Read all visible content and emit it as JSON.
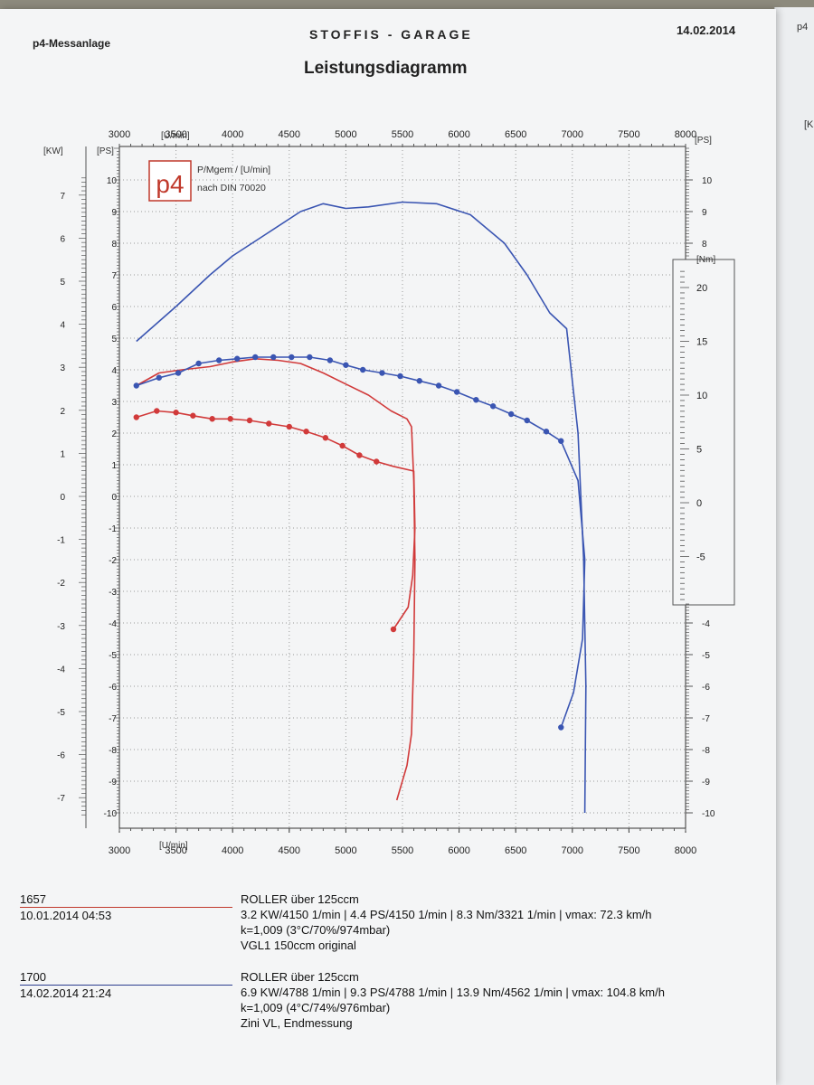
{
  "header": {
    "left": "p4-Messanlage",
    "center": "STOFFIS - GARAGE",
    "date": "14.02.2014",
    "title": "Leistungsdiagramm"
  },
  "logo": {
    "mark": "p4"
  },
  "legend": {
    "line1": "P/Mgem / [U/min]",
    "line2": "nach DIN 70020"
  },
  "units": {
    "rpm": "[U/min]",
    "kw": "[KW]",
    "ps": "[PS]",
    "nm": "[Nm]"
  },
  "chart_data": {
    "type": "line",
    "title": "Leistungsdiagramm",
    "xlabel": "[U/min]",
    "x_ticks": [
      3000,
      3500,
      4000,
      4500,
      5000,
      5500,
      6000,
      6500,
      7000,
      7500,
      8000
    ],
    "xlim": [
      3000,
      8000
    ],
    "ylabel_left_outer": "[KW]",
    "kw_ticks": [
      -7,
      -6,
      -5,
      -4,
      -3,
      -2,
      -1,
      0,
      1,
      2,
      3,
      4,
      5,
      6,
      7
    ],
    "ylabel_left": "[PS]",
    "ps_ticks": [
      -10,
      -9,
      -8,
      -7,
      -6,
      -5,
      -4,
      -3,
      -2,
      -1,
      0,
      1,
      2,
      3,
      4,
      5,
      6,
      7,
      8,
      9,
      10
    ],
    "ylim": [
      -10,
      11
    ],
    "ylabel_right_nm": "[Nm]",
    "nm_ticks": [
      -5,
      0,
      5,
      10,
      15,
      20
    ],
    "ylabel_right_ps": "[PS]",
    "ps_right_ticks": [
      -10,
      -9,
      -8,
      -7,
      -6,
      -5,
      -4,
      8,
      9,
      10
    ],
    "grid": true,
    "series": [
      {
        "name": "1657 power",
        "color": "#d13a3a",
        "marker": "none",
        "x": [
          3150,
          3350,
          3550,
          3800,
          4000,
          4200,
          4400,
          4600,
          4800,
          5000,
          5200,
          5400,
          5540,
          5580,
          5600,
          5610,
          5600,
          5580,
          5540,
          5450
        ],
        "y": [
          3.5,
          3.9,
          4.0,
          4.1,
          4.25,
          4.35,
          4.3,
          4.2,
          3.9,
          3.55,
          3.2,
          2.7,
          2.45,
          2.2,
          0.5,
          -2,
          -5,
          -7.5,
          -8.5,
          -9.6
        ]
      },
      {
        "name": "1657 torque",
        "color": "#d13a3a",
        "marker": "dot",
        "x": [
          3150,
          3330,
          3500,
          3650,
          3820,
          3980,
          4150,
          4320,
          4500,
          4650,
          4820,
          4970,
          5120,
          5270,
          5420,
          5600,
          5610,
          5590,
          5550,
          5420
        ],
        "y": [
          2.5,
          2.7,
          2.65,
          2.55,
          2.45,
          2.45,
          2.4,
          2.3,
          2.2,
          2.05,
          1.85,
          1.6,
          1.3,
          1.1,
          0.95,
          0.8,
          -1,
          -2.5,
          -3.5,
          -4.2
        ]
      },
      {
        "name": "1700 power",
        "color": "#3a55b2",
        "marker": "none",
        "x": [
          3150,
          3500,
          3800,
          4000,
          4300,
          4600,
          4800,
          5000,
          5200,
          5500,
          5800,
          6100,
          6400,
          6600,
          6800,
          6950,
          7050,
          7100,
          7120,
          7110
        ],
        "y": [
          4.9,
          6.0,
          7.0,
          7.6,
          8.3,
          9.0,
          9.25,
          9.1,
          9.15,
          9.3,
          9.25,
          8.9,
          8.0,
          7.0,
          5.8,
          5.3,
          2.0,
          -2.0,
          -6.0,
          -10.0
        ]
      },
      {
        "name": "1700 torque",
        "color": "#3a55b2",
        "marker": "dot",
        "x": [
          3150,
          3350,
          3520,
          3700,
          3880,
          4040,
          4200,
          4360,
          4520,
          4680,
          4860,
          5000,
          5150,
          5320,
          5480,
          5650,
          5820,
          5980,
          6150,
          6300,
          6460,
          6600,
          6770,
          6900,
          7050,
          7110,
          7090,
          7010,
          6900
        ],
        "y": [
          3.5,
          3.75,
          3.9,
          4.2,
          4.3,
          4.35,
          4.4,
          4.4,
          4.4,
          4.4,
          4.3,
          4.15,
          4.0,
          3.9,
          3.8,
          3.65,
          3.5,
          3.3,
          3.05,
          2.85,
          2.6,
          2.4,
          2.05,
          1.75,
          0.5,
          -2,
          -4.5,
          -6.2,
          -7.3
        ]
      }
    ]
  },
  "records": [
    {
      "id": "1657",
      "datetime": "10.01.2014  04:53",
      "vehicle": "ROLLER über 125ccm",
      "values": "3.2 KW/4150 1/min  |  4.4 PS/4150 1/min  |  8.3 Nm/3321 1/min | vmax: 72.3 km/h",
      "conditions": "k=1,009 (3°C/70%/974mbar)",
      "note": "VGL1 150ccm original",
      "color": "#c0392b"
    },
    {
      "id": "1700",
      "datetime": "14.02.2014  21:24",
      "vehicle": "ROLLER über 125ccm",
      "values": "6.9 KW/4788 1/min  |  9.3 PS/4788 1/min  |  13.9 Nm/4562 1/min | vmax: 104.8 km/h",
      "conditions": "k=1,009 (4°C/74%/976mbar)",
      "note": "Zini VL, Endmessung",
      "color": "#2c3e8f"
    }
  ]
}
